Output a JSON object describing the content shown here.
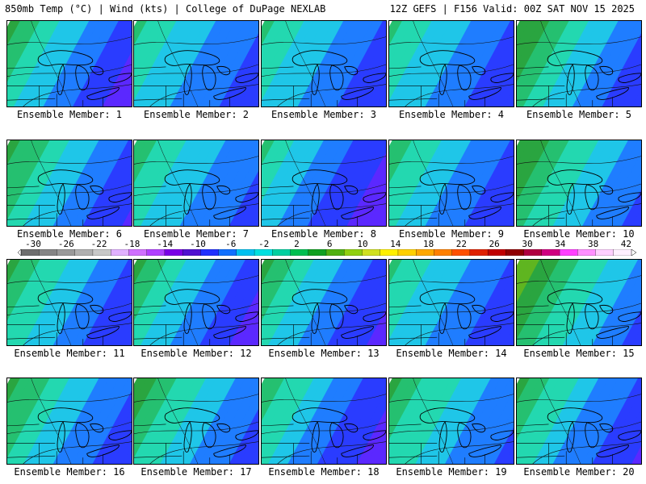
{
  "header": {
    "left": "850mb Temp (°C) | Wind (kts) | College of DuPage NEXLAB",
    "right": "12Z GEFS | F156 Valid: 00Z SAT NOV 15 2025"
  },
  "colorbar": {
    "labels": [
      "-30",
      "-26",
      "-22",
      "-18",
      "-14",
      "-10",
      "-6",
      "-2",
      "2",
      "6",
      "10",
      "14",
      "18",
      "22",
      "26",
      "30",
      "34",
      "38",
      "42"
    ],
    "colors": [
      "#6e6e6e",
      "#858585",
      "#9a9a9a",
      "#b0b0b0",
      "#c8c8c8",
      "#e0b0ff",
      "#d070ff",
      "#b040ff",
      "#7a00e6",
      "#5010d0",
      "#2030ff",
      "#1070ff",
      "#00c0f0",
      "#00e0e0",
      "#00d0a0",
      "#00c050",
      "#10a020",
      "#50b010",
      "#90d010",
      "#d0e020",
      "#fff000",
      "#ffd000",
      "#ffa800",
      "#ff8000",
      "#ff5000",
      "#e02000",
      "#c00000",
      "#900000",
      "#b00040",
      "#d00080",
      "#ff40ff",
      "#ff90ff",
      "#ffd0ff",
      "#fff0ff"
    ]
  },
  "panels": [
    {
      "label": "Ensemble Member: 1",
      "fields": [
        0.62,
        0.58,
        0.42,
        0.22
      ]
    },
    {
      "label": "Ensemble Member: 2",
      "fields": [
        0.55,
        0.62,
        0.52,
        0.28
      ]
    },
    {
      "label": "Ensemble Member: 3",
      "fields": [
        0.55,
        0.58,
        0.5,
        0.26
      ]
    },
    {
      "label": "Ensemble Member: 4",
      "fields": [
        0.55,
        0.6,
        0.48,
        0.28
      ]
    },
    {
      "label": "Ensemble Member: 5",
      "fields": [
        0.66,
        0.56,
        0.44,
        0.26
      ]
    },
    {
      "label": "Ensemble Member: 6",
      "fields": [
        0.62,
        0.56,
        0.44,
        0.24
      ]
    },
    {
      "label": "Ensemble Member: 7",
      "fields": [
        0.56,
        0.62,
        0.5,
        0.3
      ]
    },
    {
      "label": "Ensemble Member: 8",
      "fields": [
        0.55,
        0.5,
        0.36,
        0.2
      ]
    },
    {
      "label": "Ensemble Member: 9",
      "fields": [
        0.56,
        0.62,
        0.5,
        0.28
      ]
    },
    {
      "label": "Ensemble Member: 10",
      "fields": [
        0.66,
        0.58,
        0.48,
        0.3
      ]
    },
    {
      "label": "Ensemble Member: 11",
      "fields": [
        0.6,
        0.55,
        0.42,
        0.26
      ]
    },
    {
      "label": "Ensemble Member: 12",
      "fields": [
        0.6,
        0.55,
        0.42,
        0.22
      ]
    },
    {
      "label": "Ensemble Member: 13",
      "fields": [
        0.6,
        0.58,
        0.42,
        0.24
      ]
    },
    {
      "label": "Ensemble Member: 14",
      "fields": [
        0.55,
        0.56,
        0.46,
        0.26
      ]
    },
    {
      "label": "Ensemble Member: 15",
      "fields": [
        0.7,
        0.62,
        0.5,
        0.3
      ]
    },
    {
      "label": "Ensemble Member: 16",
      "fields": [
        0.62,
        0.58,
        0.46,
        0.26
      ]
    },
    {
      "label": "Ensemble Member: 17",
      "fields": [
        0.64,
        0.6,
        0.48,
        0.28
      ]
    },
    {
      "label": "Ensemble Member: 18",
      "fields": [
        0.58,
        0.56,
        0.42,
        0.22
      ]
    },
    {
      "label": "Ensemble Member: 19",
      "fields": [
        0.6,
        0.6,
        0.5,
        0.3
      ]
    },
    {
      "label": "Ensemble Member: 20",
      "fields": [
        0.62,
        0.58,
        0.44,
        0.24
      ]
    }
  ]
}
